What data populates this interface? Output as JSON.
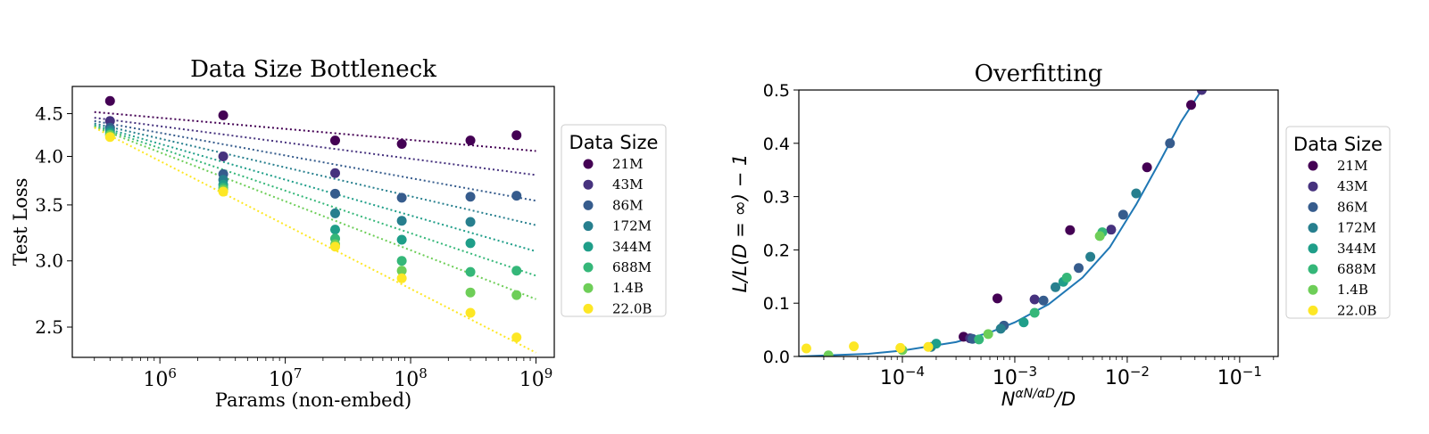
{
  "chart_data": [
    {
      "type": "scatter",
      "title": "Data Size Bottleneck",
      "xlabel": "Params (non-embed)",
      "ylabel": "Test Loss",
      "xscale": "log",
      "yscale": "log",
      "xlim": [
        200000,
        1400000000
      ],
      "ylim": [
        2.3,
        4.85
      ],
      "xticks": [
        {
          "value": 1000000,
          "base": "10",
          "exp": "6"
        },
        {
          "value": 10000000,
          "base": "10",
          "exp": "7"
        },
        {
          "value": 100000000,
          "base": "10",
          "exp": "8"
        },
        {
          "value": 1000000000,
          "base": "10",
          "exp": "9"
        }
      ],
      "yticks": [
        {
          "value": 2.5,
          "label": "2.5"
        },
        {
          "value": 3.0,
          "label": "3.0"
        },
        {
          "value": 3.5,
          "label": "3.5"
        },
        {
          "value": 4.0,
          "label": "4.0"
        },
        {
          "value": 4.5,
          "label": "4.5"
        }
      ],
      "legend": {
        "title": "Data Size",
        "placement": "right outside"
      },
      "series": [
        {
          "name": "21M",
          "color": "#440154",
          "fit_x": [
            300000,
            1000000000
          ],
          "fit_y": [
            4.52,
            4.06
          ],
          "points": [
            [
              400000,
              4.66
            ],
            [
              3200000,
              4.48
            ],
            [
              25000000,
              4.18
            ],
            [
              85000000,
              4.14
            ],
            [
              300000000,
              4.18
            ],
            [
              700000000,
              4.24
            ]
          ]
        },
        {
          "name": "43M",
          "color": "#46327e",
          "fit_x": [
            300000,
            1000000000
          ],
          "fit_y": [
            4.45,
            3.8
          ],
          "points": [
            [
              400000,
              4.41
            ],
            [
              3200000,
              4.0
            ],
            [
              25000000,
              3.82
            ]
          ]
        },
        {
          "name": "86M",
          "color": "#365c8d",
          "fit_x": [
            300000,
            1000000000
          ],
          "fit_y": [
            4.41,
            3.54
          ],
          "points": [
            [
              400000,
              4.33
            ],
            [
              3200000,
              3.81
            ],
            [
              25000000,
              3.61
            ],
            [
              85000000,
              3.57
            ],
            [
              300000000,
              3.58
            ],
            [
              700000000,
              3.59
            ]
          ]
        },
        {
          "name": "172M",
          "color": "#277f8e",
          "fit_x": [
            300000,
            1000000000
          ],
          "fit_y": [
            4.38,
            3.31
          ],
          "points": [
            [
              400000,
              4.3
            ],
            [
              3200000,
              3.75
            ],
            [
              25000000,
              3.42
            ],
            [
              85000000,
              3.35
            ],
            [
              300000000,
              3.34
            ]
          ]
        },
        {
          "name": "344M",
          "color": "#1f9e89",
          "fit_x": [
            300000,
            1000000000
          ],
          "fit_y": [
            4.36,
            3.08
          ],
          "points": [
            [
              400000,
              4.27
            ],
            [
              3200000,
              3.7
            ],
            [
              25000000,
              3.27
            ],
            [
              85000000,
              3.18
            ],
            [
              300000000,
              3.15
            ]
          ]
        },
        {
          "name": "688M",
          "color": "#35b779",
          "fit_x": [
            300000,
            1000000000
          ],
          "fit_y": [
            4.35,
            2.88
          ],
          "points": [
            [
              400000,
              4.25
            ],
            [
              3200000,
              3.67
            ],
            [
              25000000,
              3.19
            ],
            [
              85000000,
              3.0
            ],
            [
              300000000,
              2.91
            ],
            [
              700000000,
              2.92
            ]
          ]
        },
        {
          "name": "1.4B",
          "color": "#6ece58",
          "fit_x": [
            300000,
            1000000000
          ],
          "fit_y": [
            4.34,
            2.7
          ],
          "points": [
            [
              400000,
              4.24
            ],
            [
              3200000,
              3.65
            ],
            [
              25000000,
              3.14
            ],
            [
              85000000,
              2.92
            ],
            [
              300000000,
              2.75
            ],
            [
              700000000,
              2.73
            ]
          ]
        },
        {
          "name": "22.0B",
          "color": "#fde725",
          "fit_x": [
            300000,
            1000000000
          ],
          "fit_y": [
            4.33,
            2.33
          ],
          "points": [
            [
              400000,
              4.22
            ],
            [
              3200000,
              3.63
            ],
            [
              25000000,
              3.12
            ],
            [
              85000000,
              2.86
            ],
            [
              300000000,
              2.6
            ],
            [
              700000000,
              2.43
            ]
          ]
        }
      ]
    },
    {
      "type": "scatter",
      "title": "Overfitting",
      "xlabel": "N^{α_N/α_D}/D",
      "ylabel": "L/L(D = ∞) − 1",
      "xscale": "log",
      "yscale": "linear",
      "xlim": [
        1.2e-05,
        0.22
      ],
      "ylim": [
        0,
        0.5
      ],
      "xticks": [
        {
          "value": 0.0001,
          "base": "10",
          "exp": "−4"
        },
        {
          "value": 0.001,
          "base": "10",
          "exp": "−3"
        },
        {
          "value": 0.01,
          "base": "10",
          "exp": "−2"
        },
        {
          "value": 0.1,
          "base": "10",
          "exp": "−1"
        }
      ],
      "yticks": [
        {
          "value": 0.0,
          "label": "0.0"
        },
        {
          "value": 0.1,
          "label": "0.1"
        },
        {
          "value": 0.2,
          "label": "0.2"
        },
        {
          "value": 0.3,
          "label": "0.3"
        },
        {
          "value": 0.4,
          "label": "0.4"
        },
        {
          "value": 0.5,
          "label": "0.5"
        }
      ],
      "fit_curve": {
        "color": "#1f77b4",
        "x": [
          1.2e-05,
          5e-05,
          0.0001,
          0.0003,
          0.0006,
          0.001,
          0.002,
          0.004,
          0.007,
          0.012,
          0.02,
          0.03,
          0.046
        ],
        "y": [
          0.0,
          0.005,
          0.011,
          0.027,
          0.045,
          0.064,
          0.098,
          0.148,
          0.205,
          0.285,
          0.37,
          0.44,
          0.5
        ]
      },
      "legend": {
        "title": "Data Size",
        "placement": "right outside"
      },
      "series": [
        {
          "name": "21M",
          "color": "#440154",
          "points": [
            [
              0.00035,
              0.037
            ],
            [
              0.0007,
              0.109
            ],
            [
              0.0031,
              0.237
            ],
            [
              0.015,
              0.355
            ],
            [
              0.037,
              0.472
            ]
          ]
        },
        {
          "name": "43M",
          "color": "#46327e",
          "points": [
            [
              0.0004,
              0.034
            ],
            [
              0.0015,
              0.107
            ],
            [
              0.0072,
              0.238
            ],
            [
              0.046,
              0.5
            ]
          ]
        },
        {
          "name": "86M",
          "color": "#365c8d",
          "points": [
            [
              0.00042,
              0.033
            ],
            [
              0.0008,
              0.058
            ],
            [
              0.0018,
              0.105
            ],
            [
              0.0037,
              0.166
            ],
            [
              0.0092,
              0.266
            ],
            [
              0.024,
              0.4
            ]
          ]
        },
        {
          "name": "172M",
          "color": "#277f8e",
          "points": [
            [
              0.00018,
              0.018
            ],
            [
              0.00075,
              0.052
            ],
            [
              0.0023,
              0.13
            ],
            [
              0.0047,
              0.187
            ],
            [
              0.012,
              0.306
            ]
          ]
        },
        {
          "name": "344M",
          "color": "#1f9e89",
          "points": [
            [
              0.0002,
              0.024
            ],
            [
              0.0012,
              0.064
            ],
            [
              0.0027,
              0.14
            ]
          ]
        },
        {
          "name": "688M",
          "color": "#35b779",
          "points": [
            [
              1e-05,
              0.0
            ],
            [
              0.00048,
              0.032
            ],
            [
              0.0015,
              0.082
            ],
            [
              0.0029,
              0.148
            ],
            [
              0.006,
              0.233
            ]
          ]
        },
        {
          "name": "1.4B",
          "color": "#6ece58",
          "points": [
            [
              2.2e-05,
              0.002
            ],
            [
              0.0001,
              0.012
            ],
            [
              0.00058,
              0.042
            ],
            [
              0.0057,
              0.226
            ]
          ]
        },
        {
          "name": "22.0B",
          "color": "#fde725",
          "points": [
            [
              1.4e-05,
              0.015
            ],
            [
              3.7e-05,
              0.019
            ],
            [
              9.6e-05,
              0.016
            ],
            [
              0.00017,
              0.018
            ]
          ]
        }
      ]
    }
  ]
}
